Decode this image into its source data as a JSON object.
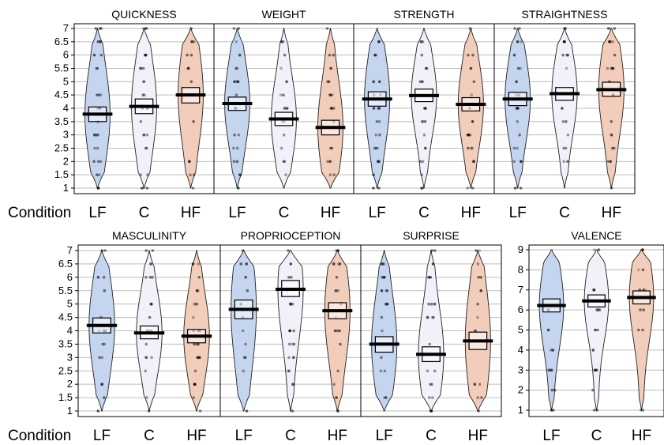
{
  "colors": {
    "LF": "#c5d5ef",
    "C": "#f1f1fa",
    "HF": "#f3cdbb"
  },
  "condition_label": "Condition",
  "chart_data": [
    {
      "type": "violin",
      "title": "QUICKNESS",
      "categories": [
        "LF",
        "C",
        "HF"
      ],
      "ylim": [
        1,
        7
      ],
      "yticks": [
        "1",
        "1.5",
        "2",
        "2.5",
        "3",
        "3.5",
        "4",
        "4.5",
        "5",
        "5.5",
        "6",
        "6.5",
        "7"
      ],
      "series": [
        {
          "name": "LF",
          "mean": 3.78,
          "hdi": [
            3.5,
            4.05
          ]
        },
        {
          "name": "C",
          "mean": 4.07,
          "hdi": [
            3.8,
            4.35
          ]
        },
        {
          "name": "HF",
          "mean": 4.5,
          "hdi": [
            4.2,
            4.78
          ]
        }
      ]
    },
    {
      "type": "violin",
      "title": "WEIGHT",
      "categories": [
        "LF",
        "C",
        "HF"
      ],
      "ylim": [
        1,
        7
      ],
      "series": [
        {
          "name": "LF",
          "mean": 4.18,
          "hdi": [
            3.92,
            4.42
          ]
        },
        {
          "name": "C",
          "mean": 3.6,
          "hdi": [
            3.35,
            3.85
          ]
        },
        {
          "name": "HF",
          "mean": 3.28,
          "hdi": [
            3.0,
            3.55
          ]
        }
      ]
    },
    {
      "type": "violin",
      "title": "STRENGTH",
      "categories": [
        "LF",
        "C",
        "HF"
      ],
      "ylim": [
        1,
        7
      ],
      "series": [
        {
          "name": "LF",
          "mean": 4.35,
          "hdi": [
            4.08,
            4.62
          ]
        },
        {
          "name": "C",
          "mean": 4.48,
          "hdi": [
            4.25,
            4.72
          ]
        },
        {
          "name": "HF",
          "mean": 4.15,
          "hdi": [
            3.9,
            4.4
          ]
        }
      ]
    },
    {
      "type": "violin",
      "title": "STRAIGHTNESS",
      "categories": [
        "LF",
        "C",
        "HF"
      ],
      "ylim": [
        1,
        7
      ],
      "series": [
        {
          "name": "LF",
          "mean": 4.35,
          "hdi": [
            4.1,
            4.6
          ]
        },
        {
          "name": "C",
          "mean": 4.55,
          "hdi": [
            4.3,
            4.78
          ]
        },
        {
          "name": "HF",
          "mean": 4.7,
          "hdi": [
            4.45,
            4.98
          ]
        }
      ]
    },
    {
      "type": "violin",
      "title": "MASCULINITY",
      "categories": [
        "LF",
        "C",
        "HF"
      ],
      "ylim": [
        1,
        7
      ],
      "yticks": [
        "1",
        "1.5",
        "2",
        "2.5",
        "3",
        "3.5",
        "4",
        "4.5",
        "5",
        "5.5",
        "6",
        "6.5",
        "7"
      ],
      "series": [
        {
          "name": "LF",
          "mean": 4.2,
          "hdi": [
            3.92,
            4.48
          ]
        },
        {
          "name": "C",
          "mean": 3.92,
          "hdi": [
            3.7,
            4.18
          ]
        },
        {
          "name": "HF",
          "mean": 3.8,
          "hdi": [
            3.55,
            4.05
          ]
        }
      ]
    },
    {
      "type": "violin",
      "title": "PROPRIOCEPTION",
      "categories": [
        "LF",
        "C",
        "HF"
      ],
      "ylim": [
        1,
        7
      ],
      "series": [
        {
          "name": "LF",
          "mean": 4.8,
          "hdi": [
            4.45,
            5.15
          ]
        },
        {
          "name": "C",
          "mean": 5.55,
          "hdi": [
            5.28,
            5.88
          ]
        },
        {
          "name": "HF",
          "mean": 4.75,
          "hdi": [
            4.45,
            5.05
          ]
        }
      ]
    },
    {
      "type": "violin",
      "title": "SURPRISE",
      "categories": [
        "LF",
        "C",
        "HF"
      ],
      "ylim": [
        1,
        7
      ],
      "series": [
        {
          "name": "LF",
          "mean": 3.5,
          "hdi": [
            3.2,
            3.78
          ]
        },
        {
          "name": "C",
          "mean": 3.12,
          "hdi": [
            2.85,
            3.4
          ]
        },
        {
          "name": "HF",
          "mean": 3.62,
          "hdi": [
            3.3,
            3.95
          ]
        }
      ]
    },
    {
      "type": "violin",
      "title": "VALENCE",
      "categories": [
        "LF",
        "C",
        "HF"
      ],
      "ylim": [
        1,
        9
      ],
      "yticks": [
        "1",
        "2",
        "3",
        "4",
        "5",
        "6",
        "7",
        "8",
        "9"
      ],
      "series": [
        {
          "name": "LF",
          "mean": 6.22,
          "hdi": [
            5.9,
            6.55
          ]
        },
        {
          "name": "C",
          "mean": 6.45,
          "hdi": [
            6.15,
            6.75
          ]
        },
        {
          "name": "HF",
          "mean": 6.62,
          "hdi": [
            6.3,
            6.95
          ]
        }
      ]
    }
  ]
}
